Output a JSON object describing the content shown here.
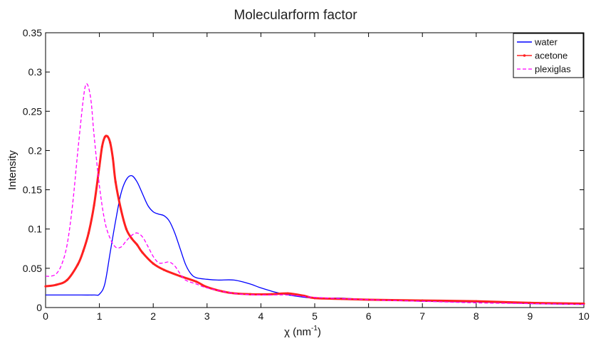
{
  "chart_data": {
    "type": "line",
    "title": "Molecularform factor",
    "xlabel": "χ (nm",
    "xlabel_sup": "-1",
    "xlabel_close": ")",
    "ylabel": "Intensity",
    "xlim": [
      0,
      10
    ],
    "ylim": [
      0,
      0.35
    ],
    "xticks": [
      0,
      1,
      2,
      3,
      4,
      5,
      6,
      7,
      8,
      9,
      10
    ],
    "xtick_labels": [
      "0",
      "1",
      "2",
      "3",
      "4",
      "5",
      "6",
      "7",
      "8",
      "9",
      "10"
    ],
    "yticks": [
      0,
      0.05,
      0.1,
      0.15,
      0.2,
      0.25,
      0.3,
      0.35
    ],
    "ytick_labels": [
      "0",
      "0.05",
      "0.1",
      "0.15",
      "0.2",
      "0.25",
      "0.3",
      "0.35"
    ],
    "grid": false,
    "legend_position": "top-right",
    "series": [
      {
        "name": "water",
        "color": "#0000ff",
        "style": "solid",
        "x": [
          0,
          0.5,
          0.9,
          1.0,
          1.1,
          1.2,
          1.3,
          1.4,
          1.5,
          1.6,
          1.7,
          1.8,
          1.9,
          2.0,
          2.1,
          2.2,
          2.3,
          2.4,
          2.5,
          2.6,
          2.7,
          2.8,
          3.0,
          3.2,
          3.5,
          3.8,
          4.0,
          4.3,
          4.6,
          5.0,
          5.5,
          6.0,
          7.0,
          8.0,
          9.0,
          10.0
        ],
        "values": [
          0.016,
          0.016,
          0.016,
          0.017,
          0.03,
          0.07,
          0.11,
          0.145,
          0.163,
          0.168,
          0.16,
          0.145,
          0.13,
          0.122,
          0.119,
          0.117,
          0.11,
          0.095,
          0.075,
          0.055,
          0.043,
          0.038,
          0.036,
          0.035,
          0.035,
          0.03,
          0.025,
          0.019,
          0.015,
          0.012,
          0.012,
          0.01,
          0.008,
          0.007,
          0.005,
          0.004
        ]
      },
      {
        "name": "acetone",
        "color": "#ff2020",
        "style": "solid-marker",
        "x": [
          0,
          0.2,
          0.4,
          0.6,
          0.7,
          0.8,
          0.9,
          1.0,
          1.05,
          1.1,
          1.15,
          1.2,
          1.25,
          1.3,
          1.4,
          1.5,
          1.6,
          1.7,
          1.8,
          2.0,
          2.2,
          2.5,
          2.8,
          3.0,
          3.4,
          3.8,
          4.2,
          4.5,
          4.8,
          5.0,
          5.5,
          6.0,
          7.0,
          8.0,
          9.0,
          10.0
        ],
        "values": [
          0.027,
          0.029,
          0.035,
          0.055,
          0.072,
          0.095,
          0.13,
          0.18,
          0.205,
          0.217,
          0.218,
          0.21,
          0.19,
          0.16,
          0.125,
          0.1,
          0.088,
          0.08,
          0.07,
          0.056,
          0.048,
          0.04,
          0.033,
          0.026,
          0.019,
          0.017,
          0.017,
          0.018,
          0.015,
          0.012,
          0.011,
          0.01,
          0.009,
          0.008,
          0.006,
          0.005
        ]
      },
      {
        "name": "plexiglas",
        "color": "#ff00ff",
        "style": "dashed",
        "x": [
          0,
          0.1,
          0.2,
          0.3,
          0.4,
          0.5,
          0.6,
          0.7,
          0.75,
          0.8,
          0.85,
          0.9,
          1.0,
          1.1,
          1.2,
          1.3,
          1.4,
          1.5,
          1.6,
          1.7,
          1.8,
          1.9,
          2.0,
          2.1,
          2.2,
          2.3,
          2.4,
          2.5,
          2.6,
          2.8,
          3.0,
          3.5,
          4.0,
          4.5,
          5.0,
          6.0,
          7.0,
          8.0,
          9.0,
          10.0
        ],
        "values": [
          0.04,
          0.04,
          0.043,
          0.055,
          0.08,
          0.13,
          0.2,
          0.265,
          0.284,
          0.28,
          0.26,
          0.22,
          0.155,
          0.11,
          0.088,
          0.077,
          0.077,
          0.085,
          0.092,
          0.095,
          0.09,
          0.078,
          0.065,
          0.057,
          0.057,
          0.058,
          0.053,
          0.043,
          0.035,
          0.03,
          0.025,
          0.018,
          0.016,
          0.016,
          0.013,
          0.01,
          0.008,
          0.006,
          0.005,
          0.004
        ]
      }
    ]
  }
}
